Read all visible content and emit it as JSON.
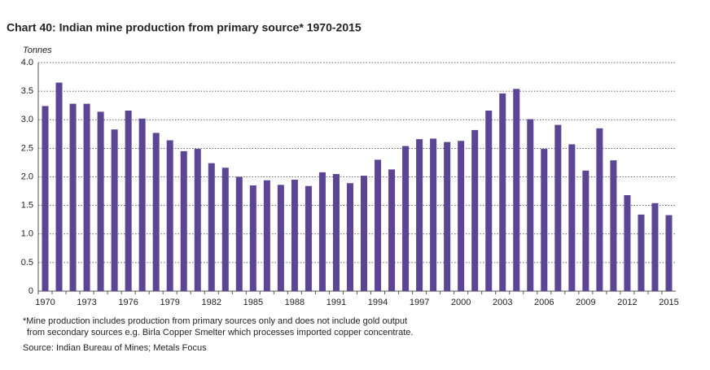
{
  "chart_data": {
    "type": "bar",
    "title": "Chart 40: Indian mine production from primary source* 1970-2015",
    "y_label": "Tonnes",
    "notes": [
      "*Mine production includes production from primary sources only and does not include gold output",
      "from secondary sources e.g. Birla Copper Smelter which processes imported copper concentrate."
    ],
    "source": "Source: Indian Bureau of Mines; Metals Focus",
    "categories": [
      "1970",
      null,
      null,
      "1973",
      null,
      null,
      "1976",
      null,
      null,
      "1979",
      null,
      null,
      "1982",
      null,
      null,
      "1985",
      null,
      null,
      "1988",
      null,
      null,
      "1991",
      null,
      null,
      "1994",
      null,
      null,
      "1997",
      null,
      null,
      "2000",
      null,
      null,
      "2003",
      null,
      null,
      "2006",
      null,
      null,
      "2009",
      null,
      null,
      "2012",
      null,
      null,
      "2015"
    ],
    "values": [
      3.24,
      3.65,
      3.28,
      3.28,
      3.14,
      2.83,
      3.16,
      3.02,
      2.77,
      2.64,
      2.45,
      2.49,
      2.24,
      2.16,
      2.0,
      1.85,
      1.94,
      1.86,
      1.95,
      1.84,
      2.08,
      2.05,
      1.89,
      2.02,
      2.3,
      2.13,
      2.54,
      2.66,
      2.67,
      2.61,
      2.63,
      2.82,
      3.16,
      3.46,
      3.54,
      3.01,
      2.49,
      2.91,
      2.57,
      2.11,
      2.85,
      2.29,
      1.68,
      1.34,
      1.54,
      1.33
    ],
    "color": "#5c4596",
    "ylim": [
      0,
      4
    ],
    "yticks": [
      0,
      0.5,
      {
        "value": 1,
        "label": "1.0"
      },
      1.5,
      {
        "value": 2,
        "label": "2.0"
      },
      2.5,
      {
        "value": 3,
        "label": "3.0"
      },
      3.5,
      {
        "value": 4,
        "label": "4.0"
      }
    ],
    "grid": true
  }
}
